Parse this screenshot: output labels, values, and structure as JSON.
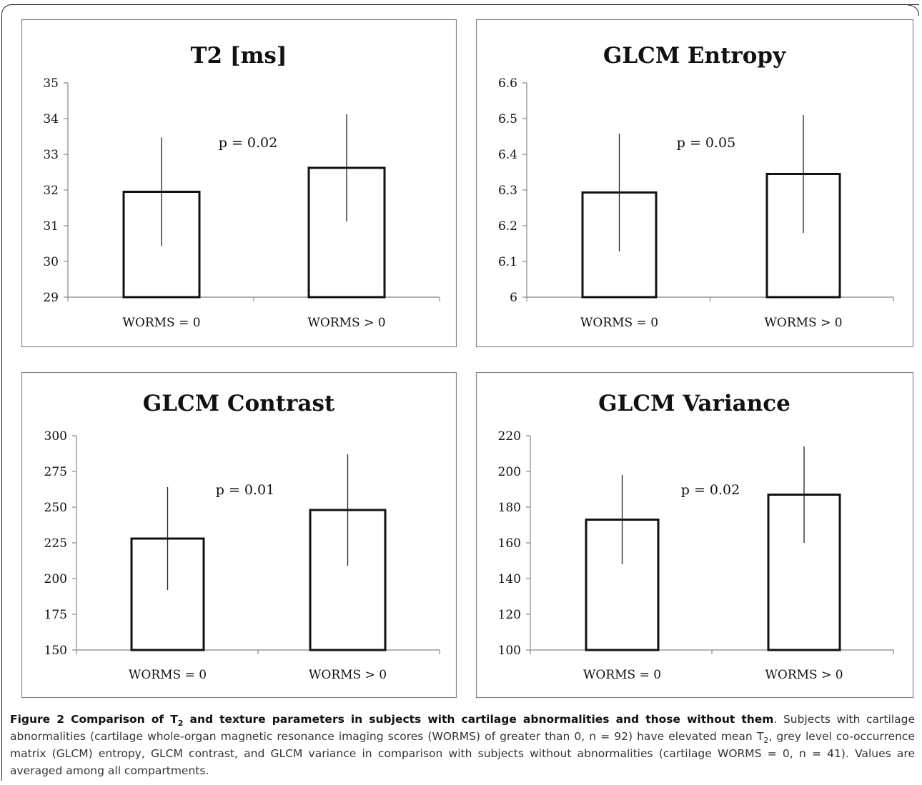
{
  "chart_data": [
    {
      "type": "bar",
      "title": "T2 [ms]",
      "categories": [
        "WORMS = 0",
        "WORMS > 0"
      ],
      "values": [
        31.95,
        32.62
      ],
      "error": [
        1.52,
        1.5
      ],
      "ylim": [
        29,
        35
      ],
      "yticks": [
        "29",
        "30",
        "31",
        "32",
        "33",
        "34",
        "35"
      ],
      "annotation": "p = 0.02",
      "grid": false
    },
    {
      "type": "bar",
      "title": "GLCM Entropy",
      "categories": [
        "WORMS = 0",
        "WORMS > 0"
      ],
      "values": [
        6.293,
        6.345
      ],
      "error": [
        0.165,
        0.165
      ],
      "ylim": [
        6,
        6.6
      ],
      "yticks": [
        "6",
        "6.1",
        "6.2",
        "6.3",
        "6.4",
        "6.5",
        "6.6"
      ],
      "annotation": "p = 0.05",
      "grid": false
    },
    {
      "type": "bar",
      "title": "GLCM Contrast",
      "categories": [
        "WORMS = 0",
        "WORMS > 0"
      ],
      "values": [
        228,
        248
      ],
      "error": [
        36,
        39
      ],
      "ylim": [
        150,
        300
      ],
      "yticks": [
        "150",
        "175",
        "200",
        "225",
        "250",
        "275",
        "300"
      ],
      "annotation": "p = 0.01",
      "grid": false
    },
    {
      "type": "bar",
      "title": "GLCM Variance",
      "categories": [
        "WORMS = 0",
        "WORMS > 0"
      ],
      "values": [
        173,
        187
      ],
      "error": [
        25,
        27
      ],
      "ylim": [
        100,
        220
      ],
      "yticks": [
        "100",
        "120",
        "140",
        "160",
        "180",
        "200",
        "220"
      ],
      "annotation": "p = 0.02",
      "grid": false
    }
  ],
  "caption": {
    "label": "Figure 2 Comparison of T",
    "label_sub": "2",
    "label_rest": " and texture parameters in subjects with cartilage abnormalities and those without them",
    "text1": ". Subjects with cartilage abnormalities (cartilage whole-organ magnetic resonance imaging scores (WORMS) of greater than 0, n = 92) have elevated mean T",
    "text1_sub": "2",
    "text2": ", grey level co-occurrence matrix (GLCM) entropy, GLCM contrast, and GLCM variance in comparison with subjects without abnormalities (cartilage WORMS = 0, n = 41). Values are averaged among all compartments."
  }
}
